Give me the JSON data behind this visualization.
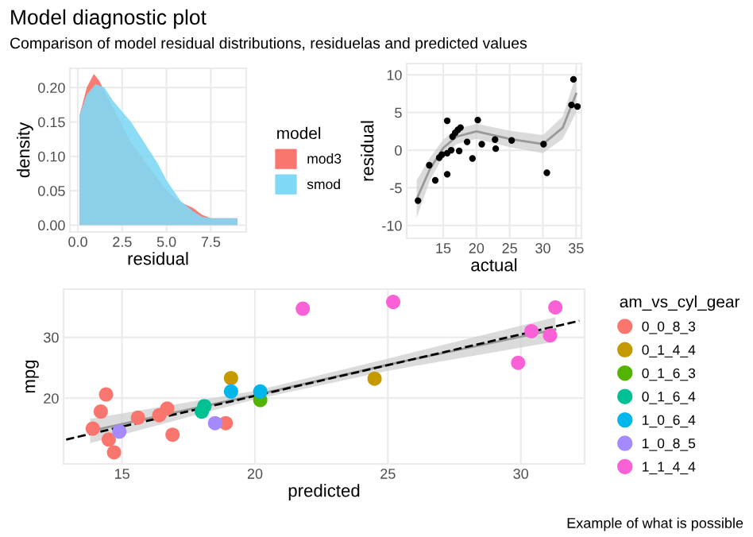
{
  "chart_data": [
    {
      "type": "area",
      "title": "Model diagnostic plot",
      "subtitle": "Comparison of model residual distributions, residuelas and predicted values",
      "xlabel": "residual",
      "ylabel": "density",
      "legend_title": "model",
      "legend": "right",
      "grid": true,
      "xlim": [
        -0.45,
        9.5
      ],
      "xticks": [
        {
          "value": 0,
          "label": "0.0"
        },
        2.5,
        {
          "value": 5,
          "label": "5.0"
        },
        7.5
      ],
      "ylim": [
        -0.01,
        0.228
      ],
      "yticks": [
        {
          "value": 0,
          "label": "0.00"
        },
        0.05,
        {
          "value": 0.1,
          "label": "0.10"
        },
        0.15,
        {
          "value": 0.2,
          "label": "0.20"
        }
      ],
      "series": [
        {
          "name": "mod3",
          "color": "#f8766d",
          "x": [
            0.1,
            0.5,
            0.9,
            1.2,
            2,
            3,
            4,
            5,
            5.8,
            6.5,
            7,
            7.5,
            8,
            9
          ],
          "values": [
            0.16,
            0.2,
            0.22,
            0.21,
            0.17,
            0.12,
            0.085,
            0.05,
            0.033,
            0.025,
            0.015,
            0.01,
            0.01,
            0.01
          ]
        },
        {
          "name": "smod",
          "color": "#7fd8f5",
          "x": [
            0.1,
            0.5,
            1,
            1.5,
            2,
            3,
            4,
            4.5,
            5,
            5.8,
            6.5,
            7,
            7.5,
            9
          ],
          "values": [
            0.16,
            0.19,
            0.205,
            0.2,
            0.18,
            0.15,
            0.11,
            0.09,
            0.065,
            0.035,
            0.02,
            0.012,
            0.01,
            0.01
          ]
        }
      ]
    },
    {
      "type": "scatter",
      "xlabel": "actual",
      "ylabel": "residual",
      "grid": true,
      "xlim": [
        9.5,
        35.8
      ],
      "xticks": [
        15,
        20,
        25,
        30,
        35
      ],
      "ylim": [
        -11.7,
        11.5
      ],
      "yticks": [
        -10,
        -5,
        0,
        5,
        10
      ],
      "series": [
        {
          "type": "line",
          "color": "#999999",
          "x": [
            11,
            13,
            15,
            17,
            20,
            25,
            30,
            33,
            35
          ],
          "values": [
            -6.5,
            -2.5,
            0.3,
            1.8,
            2.5,
            1.5,
            0.8,
            3,
            7.5
          ],
          "lower": [
            -9,
            -4,
            -0.8,
            0.8,
            1.5,
            0.4,
            -0.4,
            1.5,
            5
          ],
          "upper": [
            -4,
            -1,
            1.4,
            2.8,
            3.5,
            2.6,
            2,
            4.5,
            10
          ]
        },
        {
          "type": "scatter",
          "marker": "circle",
          "color": "#000000",
          "x": [
            11.2,
            12.9,
            13.8,
            14.4,
            14.8,
            15.6,
            15.6,
            15.6,
            16.2,
            16.4,
            16.8,
            17.2,
            17.6,
            17.4,
            18.6,
            19.4,
            20.2,
            20.8,
            22.8,
            22.9,
            25.3,
            30.1,
            30.6,
            34.3,
            35.2,
            34.6
          ],
          "values": [
            -6.7,
            -2.0,
            -4.0,
            -1.0,
            -0.6,
            -0.4,
            -3.2,
            3.9,
            0,
            1.8,
            2.3,
            2.7,
            3.0,
            -0.1,
            1.1,
            -1.1,
            4.0,
            0.8,
            1.4,
            0.2,
            1.3,
            0.8,
            -3.0,
            6.0,
            5.8,
            9.4
          ]
        }
      ]
    },
    {
      "type": "scatter",
      "xlabel": "predicted",
      "ylabel": "mpg",
      "legend_title": "am_vs_cyl_gear",
      "legend": "right",
      "grid": true,
      "annotations": [
        "Example of what is possible"
      ],
      "xlim": [
        12.8,
        32.4
      ],
      "xticks": [
        15,
        20,
        25,
        30
      ],
      "ylim": [
        9.2,
        37.9
      ],
      "yticks": [
        20,
        30
      ],
      "series": [
        {
          "type": "line",
          "color": "#999999",
          "x": [
            13.8,
            20,
            25,
            31.3
          ],
          "values": [
            14.6,
            20.5,
            25.5,
            31.3
          ],
          "lower": [
            12.6,
            19.8,
            24.5,
            29.3
          ],
          "upper": [
            16.6,
            21.2,
            26.5,
            33.3
          ]
        },
        {
          "type": "line",
          "color": "#000000",
          "line_style": "dashed",
          "x": [
            12.9,
            32.2
          ],
          "values": [
            13.2,
            32.7
          ]
        },
        {
          "name": "0_0_8_3",
          "marker": "circle",
          "color": "#f8766d",
          "x": [
            13.9,
            14.2,
            14.4,
            14.5,
            14.7,
            15.6,
            16.4,
            16.7,
            16.9,
            18.9
          ],
          "values": [
            15.0,
            17.8,
            20.6,
            13.2,
            11.1,
            16.8,
            17.2,
            18.3,
            14.0,
            15.9
          ]
        },
        {
          "name": "0_1_4_4",
          "marker": "circle",
          "color": "#c49a00",
          "x": [
            19.1,
            24.5
          ],
          "values": [
            23.3,
            23.2
          ]
        },
        {
          "name": "0_1_6_3",
          "marker": "circle",
          "color": "#53b400",
          "x": [
            20.2
          ],
          "values": [
            19.7
          ]
        },
        {
          "name": "0_1_6_4",
          "marker": "circle",
          "color": "#00c094",
          "x": [
            18.0,
            18.1
          ],
          "values": [
            17.8,
            18.7
          ]
        },
        {
          "name": "1_0_6_4",
          "marker": "circle",
          "color": "#00b6eb",
          "x": [
            19.1,
            20.2
          ],
          "values": [
            21.1,
            21.1
          ]
        },
        {
          "name": "1_0_8_5",
          "marker": "circle",
          "color": "#a58aff",
          "x": [
            14.9,
            18.5
          ],
          "values": [
            14.5,
            15.9
          ]
        },
        {
          "name": "1_1_4_4",
          "marker": "circle",
          "color": "#fb61d7",
          "x": [
            21.8,
            25.2,
            29.9,
            30.4,
            31.1,
            31.3
          ],
          "values": [
            34.7,
            35.8,
            25.8,
            31.0,
            30.3,
            34.9
          ]
        }
      ]
    }
  ]
}
